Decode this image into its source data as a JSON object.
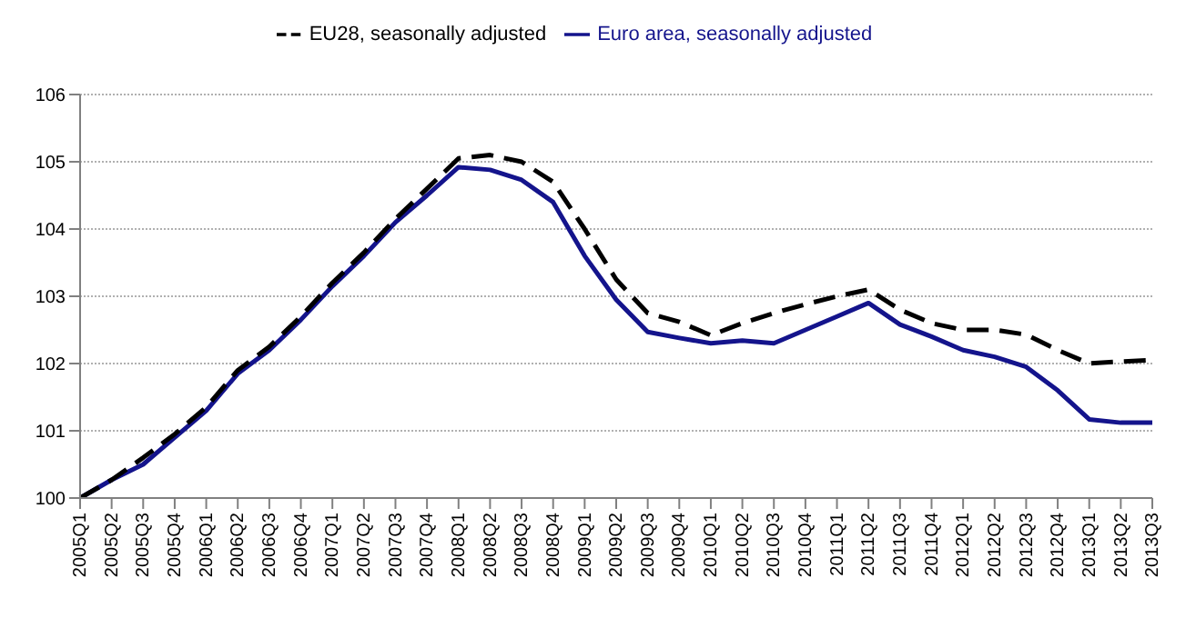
{
  "chart_data": {
    "type": "line",
    "categories": [
      "2005Q1",
      "2005Q2",
      "2005Q3",
      "2005Q4",
      "2006Q1",
      "2006Q2",
      "2006Q3",
      "2006Q4",
      "2007Q1",
      "2007Q2",
      "2007Q3",
      "2007Q4",
      "2008Q1",
      "2008Q2",
      "2008Q3",
      "2008Q4",
      "2009Q1",
      "2009Q2",
      "2009Q3",
      "2009Q4",
      "2010Q1",
      "2010Q2",
      "2010Q3",
      "2010Q4",
      "2011Q1",
      "2011Q2",
      "2011Q3",
      "2011Q4",
      "2012Q1",
      "2012Q2",
      "2012Q3",
      "2012Q4",
      "2013Q1",
      "2013Q2",
      "2013Q3"
    ],
    "series": [
      {
        "name": "Euro area, seasonally adjusted",
        "color": "#14148c",
        "line_style": "solid",
        "values": [
          100,
          100.27,
          100.5,
          100.9,
          101.3,
          101.85,
          102.2,
          102.65,
          103.15,
          103.6,
          104.1,
          104.5,
          104.92,
          104.88,
          104.73,
          104.4,
          103.6,
          102.95,
          102.47,
          102.38,
          102.3,
          102.34,
          102.3,
          102.5,
          102.7,
          102.9,
          102.58,
          102.4,
          102.2,
          102.1,
          101.95,
          101.6,
          101.17,
          101.12,
          101.12
        ]
      },
      {
        "name": "EU28, seasonally adjusted",
        "color": "#000000",
        "line_style": "dashed",
        "values": [
          100,
          100.27,
          100.6,
          100.95,
          101.35,
          101.9,
          102.25,
          102.7,
          103.2,
          103.65,
          104.15,
          104.6,
          105.05,
          105.1,
          105.0,
          104.7,
          104.0,
          103.25,
          102.75,
          102.62,
          102.42,
          102.6,
          102.75,
          102.88,
          103.0,
          103.1,
          102.8,
          102.6,
          102.5,
          102.5,
          102.43,
          102.2,
          102.0,
          102.03,
          102.05
        ]
      }
    ],
    "ylim": [
      100,
      106
    ],
    "yticks": [
      100,
      101,
      102,
      103,
      104,
      105,
      106
    ],
    "grid": "y",
    "legend": "top",
    "marker": "none"
  }
}
